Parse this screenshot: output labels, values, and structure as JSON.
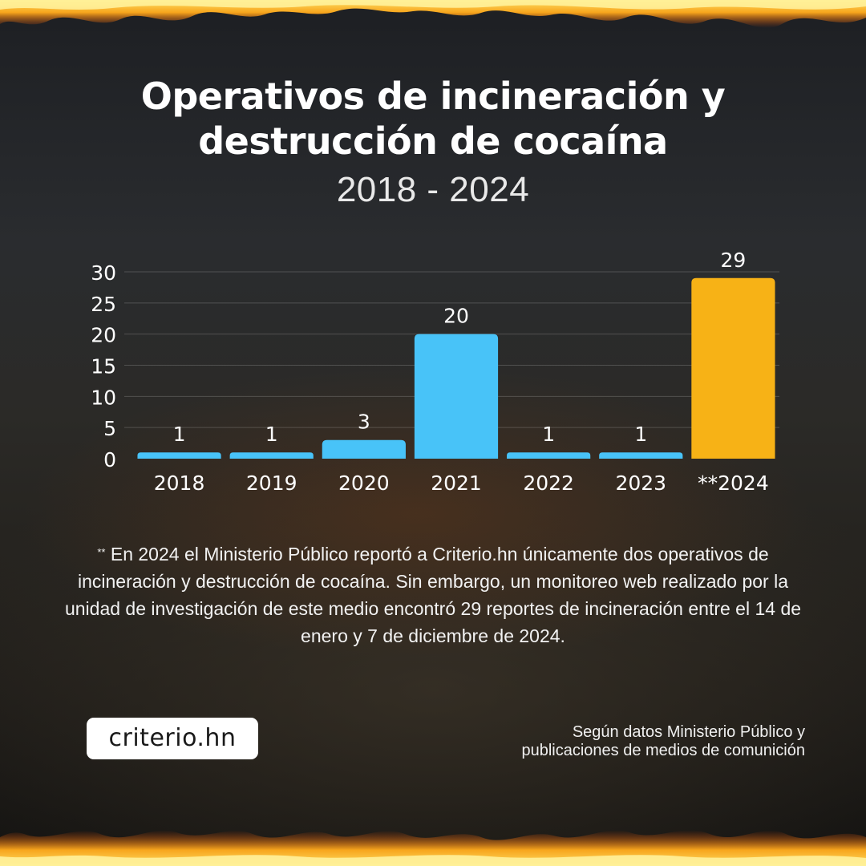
{
  "title_line1": "Operativos de incineración y",
  "title_line2": "destrucción de cocaína",
  "subtitle": "2018 - 2024",
  "chart_data": {
    "type": "bar",
    "categories": [
      "2018",
      "2019",
      "2020",
      "2021",
      "2022",
      "2023",
      "**2024"
    ],
    "values": [
      1,
      1,
      3,
      20,
      1,
      1,
      29
    ],
    "data_labels": [
      "1",
      "1",
      "3",
      "20",
      "1",
      "1",
      "29"
    ],
    "y_ticks": [
      "0",
      "5",
      "10",
      "15",
      "20",
      "25",
      "30"
    ],
    "ylim": [
      0,
      30
    ],
    "grid": true,
    "colors": [
      "#48c3f8",
      "#48c3f8",
      "#48c3f8",
      "#48c3f8",
      "#48c3f8",
      "#48c3f8",
      "#f7b216"
    ]
  },
  "note": {
    "marker": "**",
    "text": "En 2024 el Ministerio Público reportó a Criterio.hn únicamente dos operativos de incineración y destrucción de cocaína. Sin embargo, un monitoreo web realizado por la unidad de investigación de este medio encontró 29 reportes de incineración entre el 14 de enero y 7 de diciembre de 2024."
  },
  "logo_text": "criterio.hn",
  "source_line1": "Según datos Ministerio Público y",
  "source_line2": "publicaciones de medios de comunición"
}
